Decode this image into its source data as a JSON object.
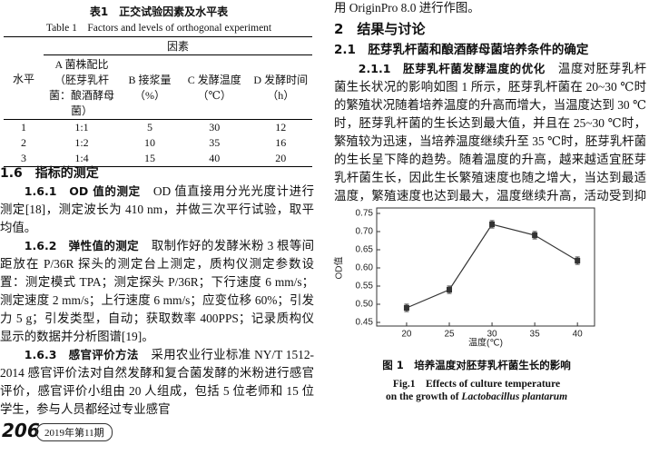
{
  "table": {
    "title": "表1　正交试验因素及水平表",
    "title_en": "Table 1　Factors and levels of orthogonal experiment",
    "corner": "水平",
    "group": "因素",
    "columns": [
      "A 菌株配比（胚芽乳杆菌：酿酒酵母菌）",
      "B 接浆量（%）",
      "C 发酵温度（℃）",
      "D 发酵时间（h）"
    ],
    "rows": [
      [
        "1",
        "1:1",
        "5",
        "30",
        "12"
      ],
      [
        "2",
        "1:2",
        "10",
        "35",
        "16"
      ],
      [
        "3",
        "1:4",
        "15",
        "40",
        "20"
      ]
    ]
  },
  "left": {
    "section": "1.6　指标的测定",
    "paragraphs": [
      {
        "head": "1.6.1　OD 值的测定",
        "text": "OD 值直接用分光光度计进行测定[18]，测定波长为 410 nm，并做三次平行试验，取平均值。"
      },
      {
        "head": "1.6.2　弹性值的测定",
        "text": "取制作好的发酵米粉 3 根等间距放在 P/36R 探头的测定台上测定，质构仪测定参数设置：测定模式 TPA；测定探头 P/36R；下行速度 6 mm/s；测定速度 2 mm/s；上行速度 6 mm/s；应变位移 60%；引发力 5 g；引发类型，自动；获取数率 400PPS；记录质构仪显示的数据并分析图谱[19]。"
      },
      {
        "head": "1.6.3　感官评价方法",
        "text": "采用农业行业标准 NY/T 1512-2014 感官评价法对自然发酵和复合菌发酵的米粉进行感官评价，感官评价小组由 20 人组成，包括 5 位老师和 15 位学生，参与人员都经过专业感官"
      }
    ]
  },
  "right": {
    "top_line": "用 OriginPro 8.0 进行作图。",
    "section": "2　结果与讨论",
    "subsection": "2.1　胚芽乳杆菌和酿酒酵母菌培养条件的确定",
    "paragraph": {
      "head": "2.1.1　胚芽乳杆菌发酵温度的优化",
      "text": "温度对胚芽乳杆菌生长状况的影响如图 1 所示，胚芽乳杆菌在 20~30 ℃时的繁殖状况随着培养温度的升高而增大，当温度达到 30 ℃时，胚芽乳杆菌的生长达到最大值，并且在 25~30 ℃时，繁殖较为迅速，当培养温度继续升至 35 ℃时，胚芽乳杆菌的生长呈下降的趋势。随着温度的升高，越来越适宜胚芽乳杆菌生长，因此生长繁殖速度也随之增大，当达到最适温度，繁殖速度也达到最大，温度继续升高，活动受到抑制，活菌数"
    }
  },
  "chart_data": {
    "type": "line",
    "x": [
      20,
      25,
      30,
      35,
      40
    ],
    "values": [
      0.49,
      0.54,
      0.72,
      0.69,
      0.62
    ],
    "errors": [
      0.01,
      0.01,
      0.01,
      0.01,
      0.01
    ],
    "color": "#333333",
    "xlim": [
      16.5,
      42
    ],
    "ylim": [
      0.44,
      0.765
    ],
    "xticks": [
      20,
      25,
      30,
      35,
      40
    ],
    "yticks": [
      {
        "value": 0.45,
        "label": "0.45"
      },
      {
        "value": 0.5,
        "label": "0.50"
      },
      {
        "value": 0.55,
        "label": "0.55"
      },
      {
        "value": 0.6,
        "label": "0.60"
      },
      {
        "value": 0.65,
        "label": "0.65"
      },
      {
        "value": 0.7,
        "label": "0.70"
      },
      {
        "value": 0.75,
        "label": "0.75"
      }
    ],
    "xlabel": "温度(℃)",
    "ylabel": "OD值",
    "caption": "图 1　培养温度对胚芽乳杆菌生长的影响",
    "caption_en": "Fig.1　Effects of culture temperature",
    "caption_en2": "on the growth of ",
    "caption_en_species": "Lactobacillus plantarum"
  },
  "footer": {
    "page": "206",
    "issue": "2019年第11期"
  }
}
